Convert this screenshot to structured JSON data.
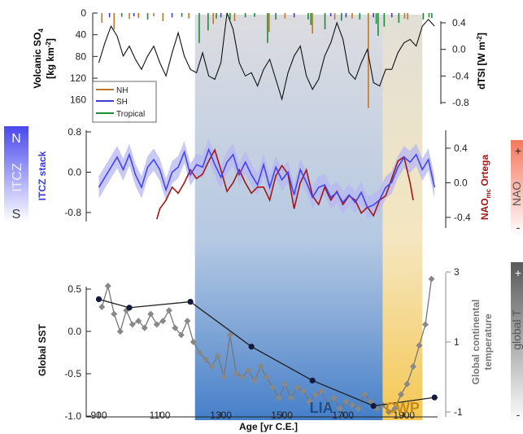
{
  "colors": {
    "nh": "#b87a2e",
    "sh": "#3b3bd8",
    "tropical": "#1d8a3c",
    "itcz": "#4444ee",
    "itcz_band": "#b7b7f2",
    "nao": "#a01818",
    "lia": "#3b78c6",
    "cwp": "#f2c24a",
    "grey": "#777777",
    "sst": "#1f1f1f"
  },
  "chart_data": [
    {
      "type": "line",
      "panel": "top",
      "left_axis_label": [
        "Volcanic SO",
        "4",
        "[kg km",
        "-2",
        "]"
      ],
      "right_axis_label": [
        "dTSI [W m",
        "-2",
        "]"
      ],
      "left_ticks": [
        "0",
        "40",
        "80",
        "120",
        "160"
      ],
      "right_ticks": [
        "0.4",
        "0.0",
        "-0.4",
        "-0.8"
      ],
      "ylim_left": [
        0,
        180
      ],
      "ylim_right": [
        -0.85,
        0.55
      ],
      "legend": [
        "NH",
        "SH",
        "Tropical"
      ],
      "volcanic": [
        {
          "x": 910,
          "v": 18,
          "s": "nh"
        },
        {
          "x": 935,
          "v": 8,
          "s": "sh"
        },
        {
          "x": 950,
          "v": 30,
          "s": "nh"
        },
        {
          "x": 975,
          "v": 7,
          "s": "tropical"
        },
        {
          "x": 1000,
          "v": 11,
          "s": "nh"
        },
        {
          "x": 1015,
          "v": 6,
          "s": "sh"
        },
        {
          "x": 1030,
          "v": 9,
          "s": "nh"
        },
        {
          "x": 1060,
          "v": 12,
          "s": "tropical"
        },
        {
          "x": 1080,
          "v": 6,
          "s": "nh"
        },
        {
          "x": 1110,
          "v": 15,
          "s": "nh"
        },
        {
          "x": 1140,
          "v": 8,
          "s": "sh"
        },
        {
          "x": 1172,
          "v": 7,
          "s": "tropical"
        },
        {
          "x": 1195,
          "v": 10,
          "s": "nh"
        },
        {
          "x": 1229,
          "v": 55,
          "s": "tropical"
        },
        {
          "x": 1258,
          "v": 32,
          "s": "tropical"
        },
        {
          "x": 1275,
          "v": 20,
          "s": "nh"
        },
        {
          "x": 1285,
          "v": 10,
          "s": "tropical"
        },
        {
          "x": 1300,
          "v": 8,
          "s": "sh"
        },
        {
          "x": 1330,
          "v": 12,
          "s": "tropical"
        },
        {
          "x": 1345,
          "v": 15,
          "s": "nh"
        },
        {
          "x": 1380,
          "v": 8,
          "s": "tropical"
        },
        {
          "x": 1410,
          "v": 7,
          "s": "tropical"
        },
        {
          "x": 1453,
          "v": 55,
          "s": "tropical"
        },
        {
          "x": 1458,
          "v": 35,
          "s": "nh"
        },
        {
          "x": 1480,
          "v": 12,
          "s": "tropical"
        },
        {
          "x": 1510,
          "v": 10,
          "s": "nh"
        },
        {
          "x": 1540,
          "v": 8,
          "s": "sh"
        },
        {
          "x": 1586,
          "v": 12,
          "s": "tropical"
        },
        {
          "x": 1595,
          "v": 22,
          "s": "tropical"
        },
        {
          "x": 1600,
          "v": 38,
          "s": "nh"
        },
        {
          "x": 1641,
          "v": 30,
          "s": "tropical"
        },
        {
          "x": 1660,
          "v": 6,
          "s": "sh"
        },
        {
          "x": 1673,
          "v": 12,
          "s": "nh"
        },
        {
          "x": 1695,
          "v": 14,
          "s": "tropical"
        },
        {
          "x": 1710,
          "v": 8,
          "s": "sh"
        },
        {
          "x": 1730,
          "v": 10,
          "s": "nh"
        },
        {
          "x": 1755,
          "v": 12,
          "s": "tropical"
        },
        {
          "x": 1783,
          "v": 175,
          "s": "nh"
        },
        {
          "x": 1800,
          "v": 8,
          "s": "sh"
        },
        {
          "x": 1809,
          "v": 20,
          "s": "tropical"
        },
        {
          "x": 1815,
          "v": 42,
          "s": "tropical"
        },
        {
          "x": 1835,
          "v": 25,
          "s": "tropical"
        },
        {
          "x": 1860,
          "v": 8,
          "s": "sh"
        },
        {
          "x": 1883,
          "v": 18,
          "s": "tropical"
        },
        {
          "x": 1902,
          "v": 10,
          "s": "nh"
        },
        {
          "x": 1912,
          "v": 12,
          "s": "nh"
        },
        {
          "x": 1963,
          "v": 12,
          "s": "tropical"
        },
        {
          "x": 1982,
          "v": 8,
          "s": "tropical"
        },
        {
          "x": 1991,
          "v": 9,
          "s": "tropical"
        }
      ],
      "tsi": {
        "x": [
          900,
          920,
          940,
          960,
          980,
          1000,
          1020,
          1040,
          1060,
          1080,
          1100,
          1120,
          1140,
          1160,
          1180,
          1200,
          1220,
          1240,
          1260,
          1280,
          1300,
          1320,
          1340,
          1360,
          1380,
          1400,
          1420,
          1440,
          1460,
          1480,
          1500,
          1520,
          1540,
          1560,
          1580,
          1600,
          1620,
          1640,
          1660,
          1680,
          1700,
          1720,
          1740,
          1760,
          1780,
          1800,
          1820,
          1840,
          1860,
          1880,
          1900,
          1920,
          1940,
          1960,
          1980,
          2000
        ],
        "y": [
          -0.2,
          0.1,
          0.35,
          0.2,
          -0.1,
          0.05,
          -0.15,
          -0.3,
          -0.1,
          0.05,
          -0.2,
          -0.4,
          -0.05,
          0.25,
          -0.1,
          -0.3,
          -0.35,
          -0.05,
          -0.4,
          -0.45,
          -0.2,
          0.55,
          0.3,
          -0.2,
          -0.4,
          -0.35,
          -0.55,
          -0.3,
          -0.15,
          -0.45,
          -0.75,
          -0.35,
          -0.1,
          0.05,
          -0.4,
          -0.6,
          -0.45,
          -0.1,
          0.1,
          0.4,
          0.15,
          -0.35,
          -0.45,
          -0.2,
          0.0,
          -0.5,
          -0.55,
          -0.3,
          -0.3,
          -0.05,
          0.1,
          0.15,
          0.05,
          0.35,
          0.45,
          0.35
        ]
      }
    },
    {
      "type": "line",
      "panel": "middle",
      "left_axis_label": "ITCZ stack",
      "right_axis_label": [
        "NAO",
        "mc",
        " Ortega"
      ],
      "left_ticks": [
        "0.8",
        "0.0",
        "-0.8"
      ],
      "right_ticks": [
        "0.4",
        "0.0",
        "-0.4"
      ],
      "ylim_left": [
        -0.96,
        0.9
      ],
      "ylim_right": [
        -0.48,
        0.45
      ],
      "series": [
        {
          "name": "ITCZ stack",
          "x": [
            900,
            920,
            940,
            960,
            980,
            1000,
            1020,
            1040,
            1060,
            1080,
            1100,
            1120,
            1140,
            1160,
            1180,
            1200,
            1220,
            1240,
            1260,
            1280,
            1300,
            1320,
            1340,
            1360,
            1380,
            1400,
            1420,
            1440,
            1460,
            1480,
            1500,
            1520,
            1540,
            1560,
            1580,
            1600,
            1620,
            1640,
            1660,
            1680,
            1700,
            1720,
            1740,
            1760,
            1780,
            1800,
            1820,
            1840,
            1860,
            1880,
            1900,
            1920,
            1940,
            1960,
            1980,
            2000
          ],
          "y": [
            -0.3,
            -0.1,
            0.1,
            0.3,
            0.05,
            0.35,
            -0.05,
            -0.3,
            0.1,
            0.25,
            0.05,
            -0.35,
            0.0,
            0.1,
            0.4,
            -0.05,
            0.15,
            0.1,
            0.45,
            0.15,
            -0.1,
            0.2,
            0.35,
            -0.05,
            0.2,
            -0.05,
            -0.25,
            0.15,
            -0.3,
            0.1,
            -0.15,
            0.0,
            -0.45,
            0.05,
            -0.2,
            -0.5,
            -0.3,
            -0.25,
            -0.5,
            -0.4,
            -0.6,
            -0.45,
            -0.6,
            -0.4,
            -0.7,
            -0.65,
            -0.55,
            -0.3,
            -0.2,
            0.1,
            0.3,
            0.2,
            0.35,
            0.05,
            0.25,
            -0.3
          ]
        },
        {
          "name": "NAO Ortega",
          "x": [
            1090,
            1100,
            1120,
            1140,
            1160,
            1180,
            1200,
            1220,
            1240,
            1260,
            1280,
            1300,
            1320,
            1340,
            1360,
            1380,
            1400,
            1420,
            1440,
            1460,
            1480,
            1500,
            1520,
            1540,
            1560,
            1580,
            1600,
            1620,
            1640,
            1660,
            1680,
            1700,
            1720,
            1740,
            1760,
            1780,
            1800,
            1820,
            1840,
            1860,
            1880,
            1900,
            1920,
            1930
          ],
          "y": [
            -0.42,
            -0.3,
            -0.2,
            -0.05,
            -0.12,
            0.0,
            0.15,
            0.05,
            0.1,
            0.25,
            0.38,
            0.15,
            -0.1,
            0.0,
            0.15,
            0.0,
            -0.12,
            -0.05,
            -0.05,
            -0.2,
            0.08,
            0.2,
            0.1,
            -0.3,
            0.0,
            0.15,
            -0.15,
            -0.25,
            -0.05,
            -0.2,
            -0.1,
            -0.25,
            -0.15,
            -0.2,
            -0.35,
            -0.28,
            -0.38,
            -0.2,
            -0.15,
            0.05,
            0.25,
            0.3,
            0.0,
            -0.2
          ]
        }
      ]
    },
    {
      "type": "line",
      "panel": "bottom",
      "left_axis_label": "Global SST",
      "right_axis_label": [
        "Global continental",
        "temperature"
      ],
      "left_ticks": [
        "0.5",
        "0.0",
        "-0.5",
        "-1.0"
      ],
      "right_ticks": [
        "3",
        "1",
        "-1"
      ],
      "ylim_left": [
        -1.05,
        0.6
      ],
      "ylim_right": [
        -1.2,
        3.05
      ],
      "xlabel": "Age [yr C.E.]",
      "xticks": [
        "900",
        "1100",
        "1300",
        "1500",
        "1700",
        "1900"
      ],
      "xlim": [
        880,
        2010
      ],
      "series": [
        {
          "name": "Global SST",
          "x": [
            900,
            1000,
            1200,
            1400,
            1600,
            1800,
            2000
          ],
          "y": [
            0.38,
            0.28,
            0.35,
            -0.18,
            -0.58,
            -0.88,
            -0.78
          ]
        },
        {
          "name": "Global continental temperature",
          "x": [
            910,
            930,
            950,
            970,
            990,
            1010,
            1030,
            1050,
            1070,
            1090,
            1110,
            1130,
            1150,
            1170,
            1190,
            1210,
            1230,
            1250,
            1270,
            1290,
            1310,
            1330,
            1350,
            1370,
            1390,
            1410,
            1430,
            1450,
            1470,
            1490,
            1510,
            1530,
            1550,
            1570,
            1590,
            1610,
            1630,
            1650,
            1670,
            1690,
            1710,
            1730,
            1750,
            1770,
            1790,
            1810,
            1830,
            1850,
            1870,
            1890,
            1910,
            1930,
            1950,
            1970,
            1990
          ],
          "y": [
            2.0,
            2.6,
            1.8,
            1.3,
            1.9,
            1.5,
            1.6,
            1.4,
            1.8,
            1.5,
            1.6,
            1.9,
            1.4,
            1.2,
            1.6,
            1.0,
            0.7,
            0.5,
            0.3,
            0.6,
            0.0,
            1.2,
            0.1,
            0.0,
            0.2,
            -0.1,
            0.3,
            0.0,
            -0.3,
            -0.6,
            -0.2,
            -0.6,
            -0.3,
            -0.4,
            -0.7,
            -0.5,
            -0.4,
            -0.8,
            -0.6,
            -0.9,
            -0.7,
            -0.8,
            -0.9,
            -0.5,
            -0.7,
            -0.9,
            -0.8,
            -1.0,
            -0.9,
            -0.5,
            -0.2,
            0.3,
            0.9,
            1.5,
            2.8
          ]
        }
      ],
      "periods": [
        {
          "label": "LIA",
          "x_start": 1215,
          "x_end": 1830
        },
        {
          "label": "CWP",
          "x_start": 1830,
          "x_end": 1960
        }
      ]
    }
  ],
  "side_bars": {
    "itcz": {
      "top": "N",
      "label": "ITCZ",
      "bottom": "S"
    },
    "nao": {
      "top": "+",
      "label": "NAO",
      "bottom": "-"
    },
    "global_t": {
      "top": "+",
      "label": "global T",
      "bottom": "-"
    }
  }
}
